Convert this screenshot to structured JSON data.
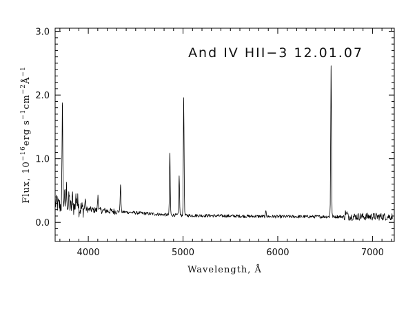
{
  "chart_data": {
    "type": "line",
    "title": "",
    "annotation": "And IV HII−3  12.01.07",
    "xlabel": "Wavelength, Å",
    "ylabel": {
      "prefix": "Flux, 10",
      "exp1": "−16",
      "mid1": "erg s",
      "exp2": "−1",
      "mid2": "cm",
      "exp3": "−2",
      "mid3": "Å",
      "exp4": "−1"
    },
    "xlim": [
      3650,
      7230
    ],
    "ylim": [
      -0.3,
      3.05
    ],
    "xticks": [
      4000,
      5000,
      6000,
      7000
    ],
    "xtick_labels": [
      "4000",
      "5000",
      "6000",
      "7000"
    ],
    "yticks": [
      0.0,
      1.0,
      2.0,
      3.0
    ],
    "ytick_labels": [
      "0.0",
      "1.0",
      "2.0",
      "3.0"
    ],
    "grid": false,
    "line_color": "#000000",
    "continuum": [
      [
        3650,
        0.3
      ],
      [
        3700,
        0.26
      ],
      [
        3800,
        0.24
      ],
      [
        3900,
        0.22
      ],
      [
        4000,
        0.2
      ],
      [
        4200,
        0.18
      ],
      [
        4400,
        0.16
      ],
      [
        4600,
        0.14
      ],
      [
        4800,
        0.12
      ],
      [
        5000,
        0.11
      ],
      [
        5500,
        0.1
      ],
      [
        6000,
        0.09
      ],
      [
        6500,
        0.09
      ],
      [
        7000,
        0.09
      ],
      [
        7220,
        0.09
      ]
    ],
    "emission_lines": [
      {
        "x": 3727,
        "peak": 1.83
      },
      {
        "x": 3750,
        "peak": 0.5
      },
      {
        "x": 3771,
        "peak": 0.55
      },
      {
        "x": 3798,
        "peak": 0.42
      },
      {
        "x": 3835,
        "peak": 0.43
      },
      {
        "x": 3869,
        "peak": 0.45
      },
      {
        "x": 3889,
        "peak": 0.45
      },
      {
        "x": 3968,
        "peak": 0.37
      },
      {
        "x": 4102,
        "peak": 0.43
      },
      {
        "x": 4340,
        "peak": 0.59
      },
      {
        "x": 4861,
        "peak": 1.09
      },
      {
        "x": 4959,
        "peak": 0.73
      },
      {
        "x": 5007,
        "peak": 1.96
      },
      {
        "x": 5876,
        "peak": 0.18
      },
      {
        "x": 6563,
        "peak": 2.46
      },
      {
        "x": 6717,
        "peak": 0.16
      },
      {
        "x": 6731,
        "peak": 0.15
      }
    ]
  }
}
